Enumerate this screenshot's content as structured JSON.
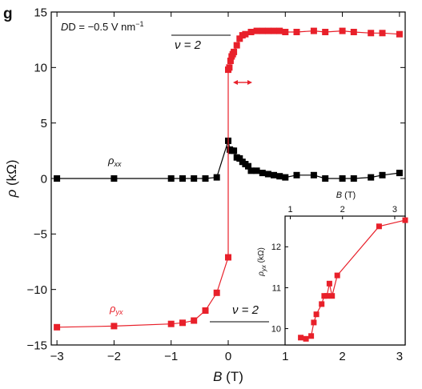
{
  "panel_label": "g",
  "chart_data": [
    {
      "type": "line",
      "xlabel_var": "B",
      "xlabel_unit": " (T)",
      "ylabel_var": "ρ",
      "ylabel_unit": " (kΩ)",
      "xlim": [
        -3.1,
        3.1
      ],
      "ylim": [
        -15,
        15
      ],
      "x_ticks": [
        -3,
        -2,
        -1,
        0,
        1,
        2,
        3
      ],
      "x_tick_labels": [
        "−3",
        "−2",
        "−1",
        "0",
        "1",
        "2",
        "3"
      ],
      "y_ticks": [
        -15,
        -10,
        -5,
        0,
        5,
        10,
        15
      ],
      "y_tick_labels": [
        "−15",
        "−10",
        "−5",
        "0",
        "5",
        "10",
        "15"
      ],
      "annotations": {
        "field": "D = −0.5 V nm",
        "field_sup": "−1",
        "nu_top": "ν = 2",
        "nu_bottom": "ν = 2"
      },
      "series": [
        {
          "name": "ρxx",
          "label_main": "ρ",
          "label_sub": "xx",
          "color": "#000000",
          "x": [
            -3.0,
            -2.0,
            -1.0,
            -0.8,
            -0.6,
            -0.4,
            -0.2,
            0.0,
            0.03,
            0.06,
            0.1,
            0.15,
            0.2,
            0.25,
            0.3,
            0.35,
            0.4,
            0.5,
            0.6,
            0.7,
            0.8,
            0.9,
            1.0,
            1.2,
            1.5,
            1.7,
            2.0,
            2.2,
            2.5,
            2.7,
            3.0
          ],
          "y": [
            0.0,
            0.0,
            0.0,
            0.0,
            0.0,
            0.0,
            0.1,
            3.4,
            2.6,
            2.5,
            2.5,
            1.9,
            1.8,
            1.5,
            1.3,
            1.1,
            0.7,
            0.7,
            0.5,
            0.4,
            0.3,
            0.2,
            0.1,
            0.3,
            0.3,
            0.0,
            0.0,
            0.0,
            0.1,
            0.3,
            0.5
          ]
        },
        {
          "name": "ρyx",
          "label_main": "ρ",
          "label_sub": "yx",
          "color": "#e8202a",
          "x": [
            -3.0,
            -2.0,
            -1.0,
            -0.8,
            -0.6,
            -0.4,
            -0.2,
            0.0,
            0.0,
            0.02,
            0.04,
            0.06,
            0.08,
            0.1,
            0.15,
            0.2,
            0.25,
            0.3,
            0.4,
            0.5,
            0.6,
            0.7,
            0.8,
            0.9,
            1.0,
            1.2,
            1.5,
            1.7,
            2.0,
            2.2,
            2.5,
            2.7,
            3.0
          ],
          "y": [
            -13.4,
            -13.3,
            -13.1,
            -13.0,
            -12.8,
            -11.9,
            -10.3,
            -7.1,
            9.8,
            10.0,
            10.6,
            11.0,
            11.2,
            11.4,
            12.0,
            12.6,
            12.9,
            13.0,
            13.2,
            13.3,
            13.3,
            13.3,
            13.3,
            13.3,
            13.2,
            13.2,
            13.3,
            13.2,
            13.3,
            13.2,
            13.1,
            13.1,
            13.0
          ]
        }
      ]
    },
    {
      "type": "scatter",
      "xlabel_var": "B",
      "xlabel_unit": " (T)",
      "ylabel_var": "ρ",
      "ylabel_sub": "yx",
      "ylabel_unit": " (kΩ)",
      "xlim": [
        0.9,
        3.2
      ],
      "ylim": [
        9.6,
        12.75
      ],
      "x_ticks": [
        1,
        2,
        3
      ],
      "x_tick_labels": [
        "1",
        "2",
        "3"
      ],
      "y_ticks": [
        10,
        11,
        12
      ],
      "y_tick_labels": [
        "10",
        "11",
        "12"
      ],
      "series": [
        {
          "color": "#e8202a",
          "x": [
            1.2,
            1.3,
            1.4,
            1.45,
            1.5,
            1.6,
            1.65,
            1.7,
            1.75,
            1.8,
            1.9,
            2.7,
            3.2
          ],
          "y": [
            9.78,
            9.75,
            9.82,
            10.15,
            10.35,
            10.6,
            10.8,
            10.8,
            11.1,
            10.8,
            11.3,
            12.5,
            12.65
          ]
        }
      ]
    }
  ]
}
